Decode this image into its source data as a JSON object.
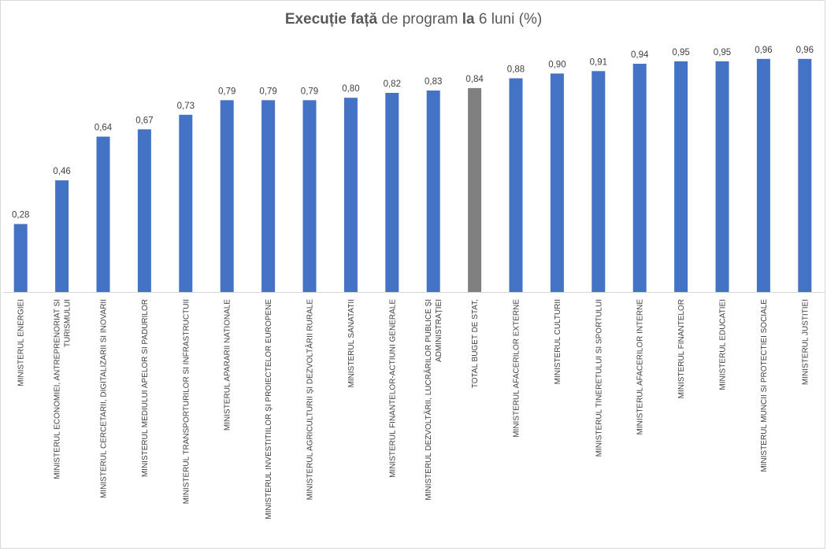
{
  "chart_data": {
    "type": "bar",
    "title_parts": [
      {
        "text": "Execuție față",
        "bold": true
      },
      {
        "text": " de program ",
        "bold": false
      },
      {
        "text": "la",
        "bold": true
      },
      {
        "text": " 6 luni (%)",
        "bold": false
      }
    ],
    "title": "Execuție față de program la 6 luni (%)",
    "categories": [
      [
        "MINISTERUL ENERGIEI"
      ],
      [
        "MINISTERUL ECONOMIEI, ANTREPRENORIAT SI",
        "TURISMULUI"
      ],
      [
        "MINISTERUL CERCETARII, DIGITALIZARII SI INOVARII"
      ],
      [
        "MINISTERUL MEDIULUI APELOR SI PADURILOR"
      ],
      [
        "MINISTERUL TRANSPORTURILOR SI INFRASTRUCTUII"
      ],
      [
        "MINISTERUL APARARII NATIONALE"
      ],
      [
        "MINISTERUL INVESTITIILOR ȘI PROIECTELOR  EUROPENE"
      ],
      [
        "MINISTERUL AGRICULTURII ȘI DEZVOLTĂRII RURALE"
      ],
      [
        "MINISTERUL SANATATII"
      ],
      [
        "MINISTERUL FINANTELOR-ACTIUNI GENERALE"
      ],
      [
        "MINISTERUL DEZVOLTĂRII, LUCRĂRILOR PUBLICE ȘI",
        "ADMINISTRAȚIEI"
      ],
      [
        "TOTAL BUGET DE STAT,"
      ],
      [
        "MINISTERUL AFACERILOR EXTERNE"
      ],
      [
        "MINISTERUL CULTURII"
      ],
      [
        "MINISTERUL TINERETULUI SI SPORTULUI"
      ],
      [
        "MINISTERUL AFACERILOR INTERNE"
      ],
      [
        "MINISTERUL FINANTELOR"
      ],
      [
        "MINISTERUL EDUCATIEI"
      ],
      [
        "MINISTERUL MUNCII SI PROTECTIEI SOCIALE"
      ],
      [
        "MINISTERUL JUSTITIEI"
      ]
    ],
    "values": [
      0.28,
      0.46,
      0.64,
      0.67,
      0.73,
      0.79,
      0.79,
      0.79,
      0.8,
      0.82,
      0.83,
      0.84,
      0.88,
      0.9,
      0.91,
      0.94,
      0.95,
      0.95,
      0.96,
      0.96
    ],
    "value_labels": [
      "0,28",
      "0,46",
      "0,64",
      "0,67",
      "0,73",
      "0,79",
      "0,79",
      "0,79",
      "0,80",
      "0,82",
      "0,83",
      "0,84",
      "0,88",
      "0,90",
      "0,91",
      "0,94",
      "0,95",
      "0,95",
      "0,96",
      "0,96"
    ],
    "highlight_index": 11,
    "colors": {
      "bar": "#4472C4",
      "highlight": "#808080",
      "axis": "#d9d9d9",
      "text": "#404040",
      "title": "#595959"
    },
    "ylim": [
      0,
      1.06
    ],
    "grid": false,
    "legend": "none"
  }
}
